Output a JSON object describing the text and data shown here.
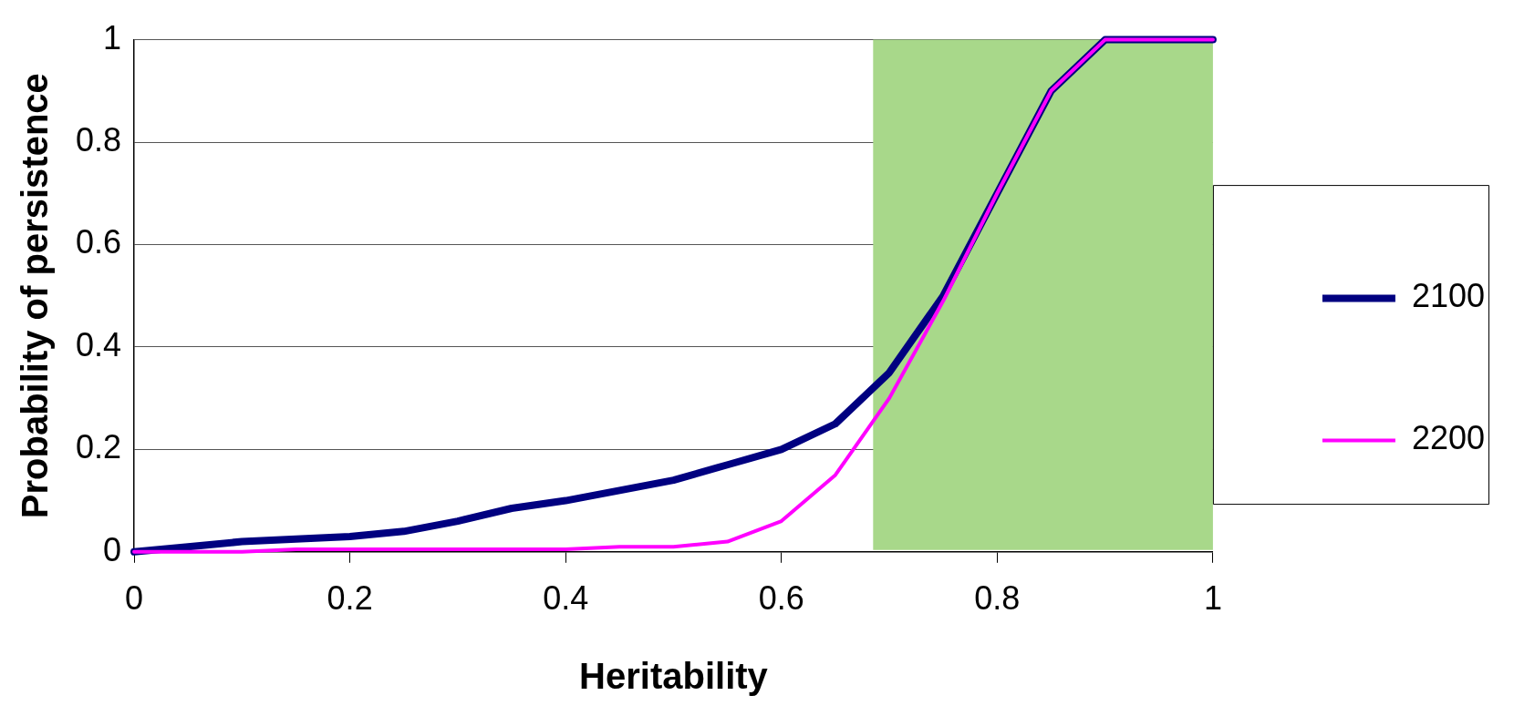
{
  "chart_data": {
    "type": "line",
    "xlabel": "Heritability",
    "ylabel": "Probability of persistence",
    "x": [
      0,
      0.05,
      0.1,
      0.15,
      0.2,
      0.25,
      0.3,
      0.35,
      0.4,
      0.45,
      0.5,
      0.55,
      0.6,
      0.65,
      0.7,
      0.75,
      0.8,
      0.85,
      0.9,
      0.95,
      1
    ],
    "series": [
      {
        "name": "2100",
        "color": "#000080",
        "values": [
          0,
          0.01,
          0.02,
          0.025,
          0.03,
          0.04,
          0.06,
          0.085,
          0.1,
          0.12,
          0.14,
          0.17,
          0.2,
          0.25,
          0.35,
          0.5,
          0.7,
          0.9,
          1,
          1,
          1
        ]
      },
      {
        "name": "2200",
        "color": "#ff00ff",
        "values": [
          0,
          0,
          0,
          0.005,
          0.005,
          0.005,
          0.005,
          0.005,
          0.005,
          0.01,
          0.01,
          0.02,
          0.06,
          0.15,
          0.3,
          0.49,
          0.7,
          0.9,
          1,
          1,
          1
        ]
      }
    ],
    "xlim": [
      0,
      1
    ],
    "xticks": [
      0,
      0.2,
      0.4,
      0.6,
      0.8,
      1
    ],
    "ylim": [
      0,
      1
    ],
    "yticks": [
      0,
      0.2,
      0.4,
      0.6,
      0.8,
      1
    ],
    "bands": [
      {
        "axis": "x",
        "from": 0.685,
        "to": 1,
        "color": "#a8d88a"
      }
    ],
    "grid": "y",
    "legend": "right",
    "marker": "none",
    "line_style": "solid"
  }
}
